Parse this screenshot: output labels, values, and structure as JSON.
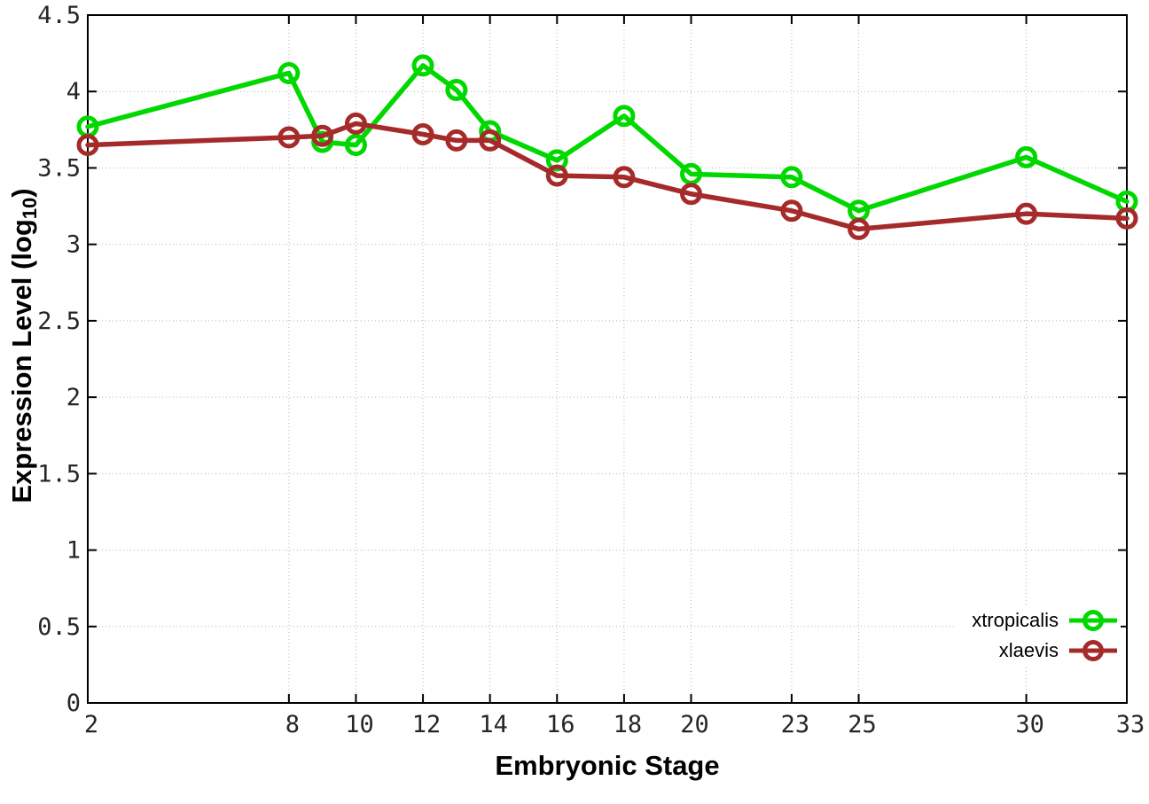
{
  "chart_data": {
    "type": "line",
    "title": "",
    "xlabel": "Embryonic Stage",
    "ylabel_pre": "Expression Level (log",
    "ylabel_sub": "10",
    "ylabel_post": ")",
    "x": [
      2,
      8,
      9,
      10,
      12,
      13,
      14,
      16,
      18,
      20,
      23,
      25,
      30,
      33
    ],
    "series": [
      {
        "name": "xtropicalis",
        "color": "#00d800",
        "values": [
          3.77,
          4.12,
          3.67,
          3.65,
          4.17,
          4.01,
          3.74,
          3.55,
          3.84,
          3.46,
          3.44,
          3.22,
          3.57,
          3.28
        ]
      },
      {
        "name": "xlaevis",
        "color": "#a52a2a",
        "values": [
          3.65,
          3.7,
          3.71,
          3.79,
          3.72,
          3.68,
          3.68,
          3.45,
          3.44,
          3.33,
          3.22,
          3.1,
          3.2,
          3.17
        ]
      }
    ],
    "xlim": [
      2,
      33
    ],
    "ylim": [
      0,
      4.5
    ],
    "xticks": [
      2,
      8,
      10,
      12,
      14,
      16,
      18,
      20,
      23,
      25,
      30,
      33
    ],
    "xtick_labels": [
      "2",
      "8",
      "10",
      "12",
      "14",
      "16",
      "18",
      "20",
      "23",
      "25",
      "30",
      "33"
    ],
    "yticks": [
      0,
      0.5,
      1,
      1.5,
      2,
      2.5,
      3,
      3.5,
      4,
      4.5
    ],
    "ytick_labels": [
      "0",
      "0.5",
      "1",
      "1.5",
      "2",
      "2.5",
      "3",
      "3.5",
      "4",
      "4.5"
    ],
    "grid": true,
    "legend_position": "bottom-right",
    "colors": {
      "grid": "#b5b5b5",
      "axis": "#000000",
      "tick_label": "#262626"
    }
  }
}
